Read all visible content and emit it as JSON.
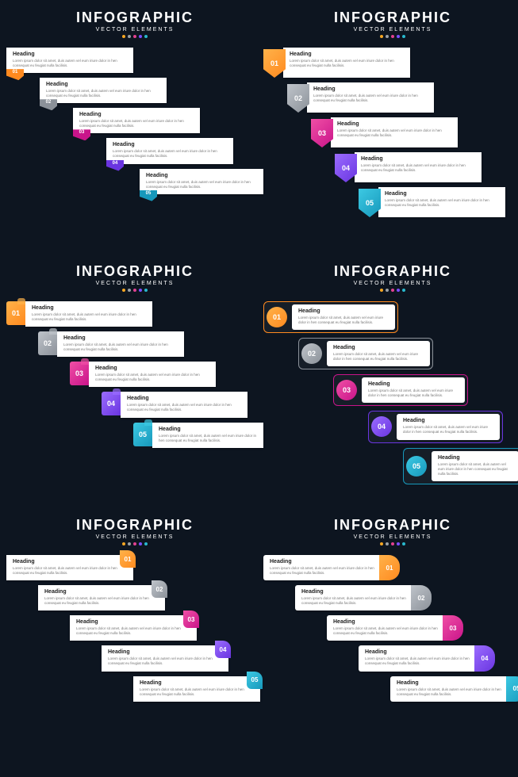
{
  "header": {
    "title": "INFOGRAPHIC",
    "subtitle": "VECTOR ELEMENTS"
  },
  "dot_colors": [
    "#f5a623",
    "#9aa0a6",
    "#e2418f",
    "#7b4dff",
    "#29b8cc"
  ],
  "step_text": {
    "heading": "Heading",
    "body": "Lorem ipsum dolor sit amet, duis autem vel eum iriure dolor in hen consequat eu feugiat nulla facilisis."
  },
  "palette": [
    {
      "num": "01",
      "c1": "#ffb24a",
      "c2": "#ff8a1f"
    },
    {
      "num": "02",
      "c1": "#bfc4ca",
      "c2": "#8b9199"
    },
    {
      "num": "03",
      "c1": "#f04fa5",
      "c2": "#c9148a"
    },
    {
      "num": "04",
      "c1": "#9a6cff",
      "c2": "#6a35e0"
    },
    {
      "num": "05",
      "c1": "#3cc9e3",
      "c2": "#1798bb"
    }
  ],
  "panels": [
    {
      "variant": "A"
    },
    {
      "variant": "B"
    },
    {
      "variant": "C"
    },
    {
      "variant": "D"
    },
    {
      "variant": "E"
    },
    {
      "variant": "F"
    }
  ]
}
